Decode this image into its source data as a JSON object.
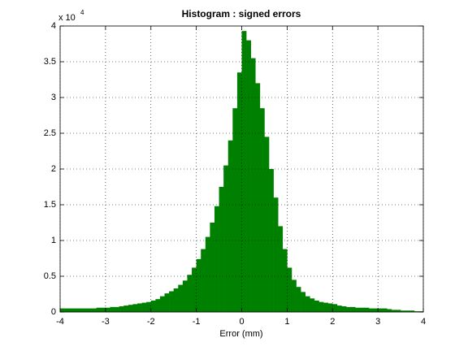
{
  "chart_data": {
    "type": "histogram",
    "title": "Histogram : signed errors",
    "xlabel": "Error (mm)",
    "y_scale": {
      "base": "x 10",
      "exponent": 4
    },
    "bins": [
      -4.0,
      -3.9,
      -3.8,
      -3.7,
      -3.6,
      -3.5,
      -3.4,
      -3.3,
      -3.2,
      -3.1,
      -3.0,
      -2.9,
      -2.8,
      -2.7,
      -2.6,
      -2.5,
      -2.4,
      -2.3,
      -2.2,
      -2.1,
      -2.0,
      -1.9,
      -1.8,
      -1.7,
      -1.6,
      -1.5,
      -1.4,
      -1.3,
      -1.2,
      -1.1,
      -1.0,
      -0.9,
      -0.8,
      -0.7,
      -0.6,
      -0.5,
      -0.4,
      -0.3,
      -0.2,
      -0.1,
      0.0,
      0.1,
      0.2,
      0.3,
      0.4,
      0.5,
      0.6,
      0.7,
      0.8,
      0.9,
      1.0,
      1.1,
      1.2,
      1.3,
      1.4,
      1.5,
      1.6,
      1.7,
      1.8,
      1.9,
      2.0,
      2.1,
      2.2,
      2.3,
      2.4,
      2.5,
      2.6,
      2.7,
      2.8,
      2.9,
      3.0,
      3.1,
      3.2,
      3.3,
      3.4,
      3.5,
      3.6,
      3.7,
      3.8,
      3.9,
      4.0
    ],
    "values": [
      0.05,
      0.05,
      0.05,
      0.05,
      0.05,
      0.05,
      0.05,
      0.05,
      0.06,
      0.06,
      0.06,
      0.07,
      0.07,
      0.08,
      0.09,
      0.1,
      0.11,
      0.12,
      0.13,
      0.14,
      0.16,
      0.18,
      0.22,
      0.26,
      0.29,
      0.33,
      0.38,
      0.44,
      0.52,
      0.62,
      0.74,
      0.88,
      1.05,
      1.25,
      1.48,
      1.75,
      2.05,
      2.4,
      2.85,
      3.35,
      3.93,
      3.8,
      3.55,
      3.2,
      2.85,
      2.45,
      2.0,
      1.6,
      1.2,
      0.88,
      0.62,
      0.45,
      0.35,
      0.28,
      0.22,
      0.19,
      0.16,
      0.14,
      0.13,
      0.12,
      0.11,
      0.09,
      0.08,
      0.07,
      0.07,
      0.06,
      0.06,
      0.06,
      0.05,
      0.05,
      0.05,
      0.05,
      0.04,
      0.03,
      0.03,
      0.02,
      0.02,
      0.02,
      0.01,
      0.01
    ],
    "color": "#008000",
    "xlim": [
      -4,
      4
    ],
    "xticks": [
      -4,
      -3,
      -2,
      -1,
      0,
      1,
      2,
      3,
      4
    ],
    "ylim": [
      0,
      4
    ],
    "yticks": [
      0,
      0.5,
      1,
      1.5,
      2,
      2.5,
      3,
      3.5,
      4
    ],
    "grid": true
  }
}
